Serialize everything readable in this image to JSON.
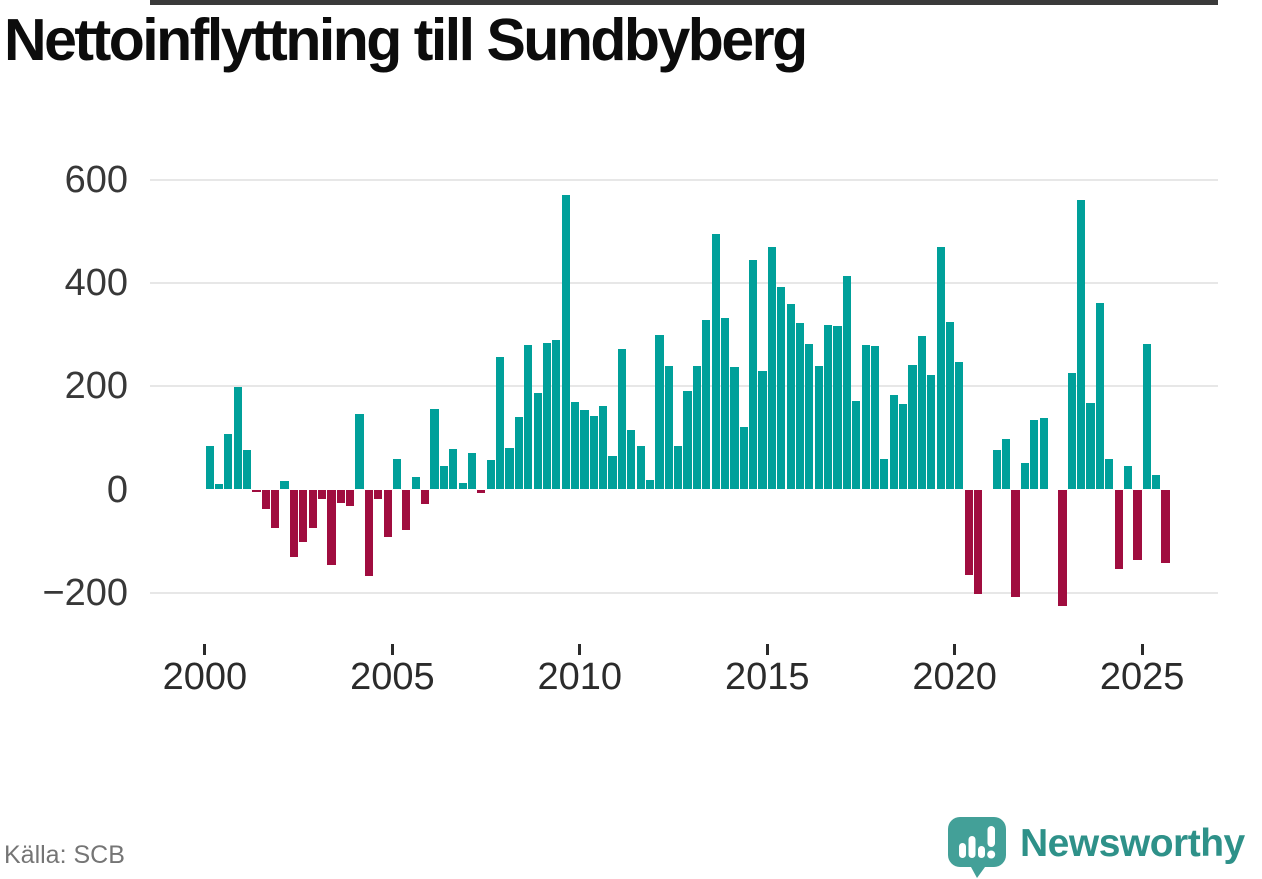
{
  "title": "Nettoinflyttning till Sundbyberg",
  "source": "Källa: SCB",
  "branding": {
    "name": "Newsworthy",
    "icon": "newsworthy-speech-bubble-chart-icon",
    "wordmark_color": "#2e9189",
    "icon_color": "#43a098"
  },
  "colors": {
    "positive_bar": "#00a09a",
    "negative_bar": "#a00d3f",
    "gridline": "#e7e7e7",
    "zero_line": "#3a3a3a",
    "axis_text": "#383838"
  },
  "chart_data": {
    "type": "bar",
    "title": "Nettoinflyttning till Sundbyberg",
    "xlabel": "",
    "ylabel": "",
    "grid": "horizontal",
    "legend": "none",
    "ylim": [
      -260,
      620
    ],
    "y_ticks": [
      600,
      400,
      200,
      0,
      -200
    ],
    "y_tick_labels": [
      "600",
      "400",
      "200",
      "0",
      "−200"
    ],
    "x_tick_years": [
      2000,
      2005,
      2010,
      2015,
      2020,
      2025
    ],
    "x_tick_labels": [
      "2000",
      "2005",
      "2010",
      "2015",
      "2020",
      "2025"
    ],
    "positive_color": "#00a09a",
    "negative_color": "#a00d3f",
    "x": [
      "2000 Q1",
      "2000 Q2",
      "2000 Q3",
      "2000 Q4",
      "2001 Q1",
      "2001 Q2",
      "2001 Q3",
      "2001 Q4",
      "2002 Q1",
      "2002 Q2",
      "2002 Q3",
      "2002 Q4",
      "2003 Q1",
      "2003 Q2",
      "2003 Q3",
      "2003 Q4",
      "2004 Q1",
      "2004 Q2",
      "2004 Q3",
      "2004 Q4",
      "2005 Q1",
      "2005 Q2",
      "2005 Q3",
      "2005 Q4",
      "2006 Q1",
      "2006 Q2",
      "2006 Q3",
      "2006 Q4",
      "2007 Q1",
      "2007 Q2",
      "2007 Q3",
      "2007 Q4",
      "2008 Q1",
      "2008 Q2",
      "2008 Q3",
      "2008 Q4",
      "2009 Q1",
      "2009 Q2",
      "2009 Q3",
      "2009 Q4",
      "2010 Q1",
      "2010 Q2",
      "2010 Q3",
      "2010 Q4",
      "2011 Q1",
      "2011 Q2",
      "2011 Q3",
      "2011 Q4",
      "2012 Q1",
      "2012 Q2",
      "2012 Q3",
      "2012 Q4",
      "2013 Q1",
      "2013 Q2",
      "2013 Q3",
      "2013 Q4",
      "2014 Q1",
      "2014 Q2",
      "2014 Q3",
      "2014 Q4",
      "2015 Q1",
      "2015 Q2",
      "2015 Q3",
      "2015 Q4",
      "2016 Q1",
      "2016 Q2",
      "2016 Q3",
      "2016 Q4",
      "2017 Q1",
      "2017 Q2",
      "2017 Q3",
      "2017 Q4",
      "2018 Q1",
      "2018 Q2",
      "2018 Q3",
      "2018 Q4",
      "2019 Q1",
      "2019 Q2",
      "2019 Q3",
      "2019 Q4",
      "2020 Q1",
      "2020 Q2",
      "2020 Q3",
      "2020 Q4",
      "2021 Q1",
      "2021 Q2",
      "2021 Q3",
      "2021 Q4",
      "2022 Q1",
      "2022 Q2",
      "2022 Q3",
      "2022 Q4",
      "2023 Q1",
      "2023 Q2",
      "2023 Q3",
      "2023 Q4",
      "2024 Q1",
      "2024 Q2",
      "2024 Q3",
      "2024 Q4",
      "2025 Q1",
      "2025 Q2",
      "2025 Q3"
    ],
    "values": [
      85,
      10,
      107,
      199,
      77,
      -5,
      -37,
      -75,
      16,
      -131,
      -101,
      -75,
      -18,
      -146,
      -26,
      -31,
      146,
      -168,
      -18,
      -91,
      60,
      -78,
      24,
      -28,
      156,
      45,
      79,
      12,
      71,
      -6,
      58,
      256,
      81,
      141,
      279,
      186,
      284,
      290,
      570,
      169,
      154,
      143,
      161,
      64,
      272,
      116,
      84,
      19,
      300,
      239,
      84,
      190,
      240,
      328,
      495,
      332,
      238,
      121,
      444,
      230,
      469,
      392,
      359,
      322,
      282,
      240,
      319,
      317,
      413,
      171,
      280,
      278,
      60,
      183,
      165,
      242,
      298,
      221,
      469,
      325,
      246,
      -166,
      -203,
      0,
      77,
      97,
      -208,
      52,
      135,
      139,
      0,
      -226,
      226,
      561,
      168,
      361,
      59,
      -153,
      45,
      -137,
      281,
      28,
      -143
    ]
  }
}
